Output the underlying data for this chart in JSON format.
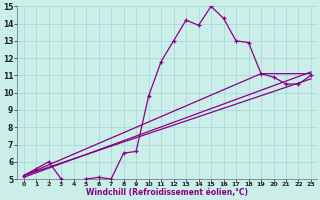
{
  "xlabel": "Windchill (Refroidissement éolien,°C)",
  "bg_color": "#cceee8",
  "grid_color": "#aadddd",
  "line_color": "#880088",
  "xlim": [
    -0.5,
    23.5
  ],
  "ylim": [
    5,
    15
  ],
  "xticks": [
    0,
    1,
    2,
    3,
    4,
    5,
    6,
    7,
    8,
    9,
    10,
    11,
    12,
    13,
    14,
    15,
    16,
    17,
    18,
    19,
    20,
    21,
    22,
    23
  ],
  "yticks": [
    5,
    6,
    7,
    8,
    9,
    10,
    11,
    12,
    13,
    14,
    15
  ],
  "line1_x": [
    0,
    1,
    2,
    3,
    4,
    5,
    6,
    7,
    8,
    9,
    10,
    11,
    12,
    13,
    14,
    15,
    16,
    17,
    18,
    19,
    20,
    21,
    22,
    23
  ],
  "line1_y": [
    5.2,
    5.6,
    6.0,
    5.0,
    4.9,
    5.0,
    5.1,
    5.0,
    6.5,
    6.6,
    9.8,
    11.8,
    13.0,
    14.2,
    13.9,
    15.0,
    14.3,
    13.0,
    12.9,
    11.1,
    10.9,
    10.5,
    10.5,
    11.0
  ],
  "line2_x": [
    0,
    19,
    23
  ],
  "line2_y": [
    5.2,
    11.1,
    11.1
  ],
  "line3_x": [
    0,
    23
  ],
  "line3_y": [
    5.2,
    10.8
  ],
  "line4_x": [
    0,
    23
  ],
  "line4_y": [
    5.1,
    11.2
  ]
}
